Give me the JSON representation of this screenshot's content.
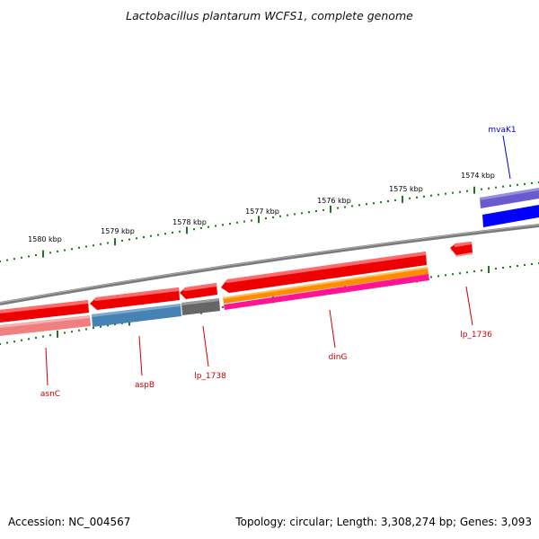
{
  "title": "Lactobacillus plantarum WCFS1, complete genome",
  "footer": {
    "accession": "Accession: NC_004567",
    "summary": "Topology: circular; Length: 3,308,274 bp; Genes: 3,093"
  },
  "colors": {
    "background": "#ffffff",
    "ruler_ticks": "#1a7a1a",
    "backbone": "#888888",
    "label_red": "#cc0000",
    "label_blue": "#0000cc"
  },
  "ruler": {
    "labels": [
      "1580 kbp",
      "1579 kbp",
      "1578 kbp",
      "1577 kbp",
      "1576 kbp",
      "1575 kbp",
      "1574 kbp"
    ]
  },
  "genes": [
    {
      "name": "asnC",
      "strand": "reverse",
      "cds_color": "#ef0000",
      "gene_color": "#f08080"
    },
    {
      "name": "aspB",
      "strand": "reverse",
      "cds_color": "#ee0000",
      "gene_color": "#4682b4"
    },
    {
      "name": "lp_1738",
      "strand": "reverse",
      "cds_color": "#ee0000",
      "gene_color": "#666666"
    },
    {
      "name": "dinG",
      "strand": "reverse",
      "cds_color": "#ee0000",
      "gene_color": "#ff8c00",
      "extra_color": "#ff1493"
    },
    {
      "name": "lp_1736",
      "strand": "reverse",
      "cds_color": "#ee0000"
    },
    {
      "name": "mvaK1",
      "strand": "forward",
      "cds_color": "#6a5acd",
      "gene_color": "#0000ff"
    }
  ]
}
